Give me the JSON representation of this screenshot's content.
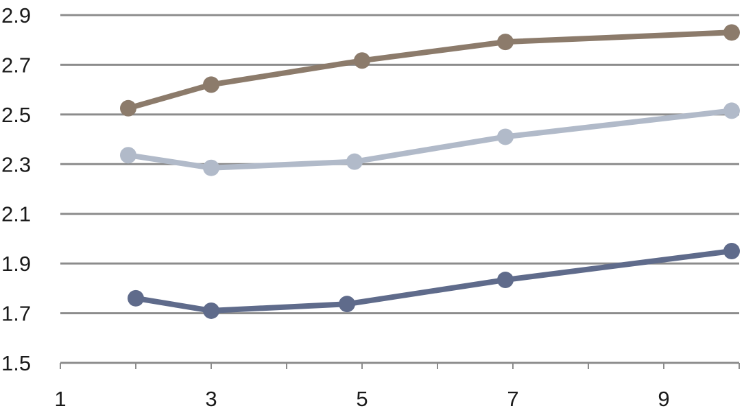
{
  "chart_data": {
    "type": "scatter",
    "title": "",
    "xlabel": "",
    "ylabel": "",
    "xlim": [
      1,
      10
    ],
    "ylim": [
      1.5,
      2.9
    ],
    "x_ticks": [
      "1",
      "3",
      "5",
      "7",
      "9"
    ],
    "y_ticks": [
      "2.9",
      "2.7",
      "2.5",
      "2.3",
      "2.1",
      "1.9",
      "1.7",
      "1.5"
    ],
    "grid": "horizontal",
    "legend": "none",
    "series": [
      {
        "color": "#8c7b6b",
        "points": [
          [
            1.9,
            2.525
          ],
          [
            3.0,
            2.62
          ],
          [
            5.0,
            2.717
          ],
          [
            6.9,
            2.792
          ],
          [
            9.9,
            2.83
          ]
        ]
      },
      {
        "color": "#b1bac9",
        "points": [
          [
            1.9,
            2.336
          ],
          [
            3.0,
            2.285
          ],
          [
            4.9,
            2.31
          ],
          [
            6.9,
            2.41
          ],
          [
            9.9,
            2.515
          ]
        ]
      },
      {
        "color": "#5f6b8b",
        "points": [
          [
            2.0,
            1.76
          ],
          [
            3.0,
            1.71
          ],
          [
            4.8,
            1.737
          ],
          [
            6.9,
            1.834
          ],
          [
            9.9,
            1.95
          ]
        ]
      }
    ]
  }
}
